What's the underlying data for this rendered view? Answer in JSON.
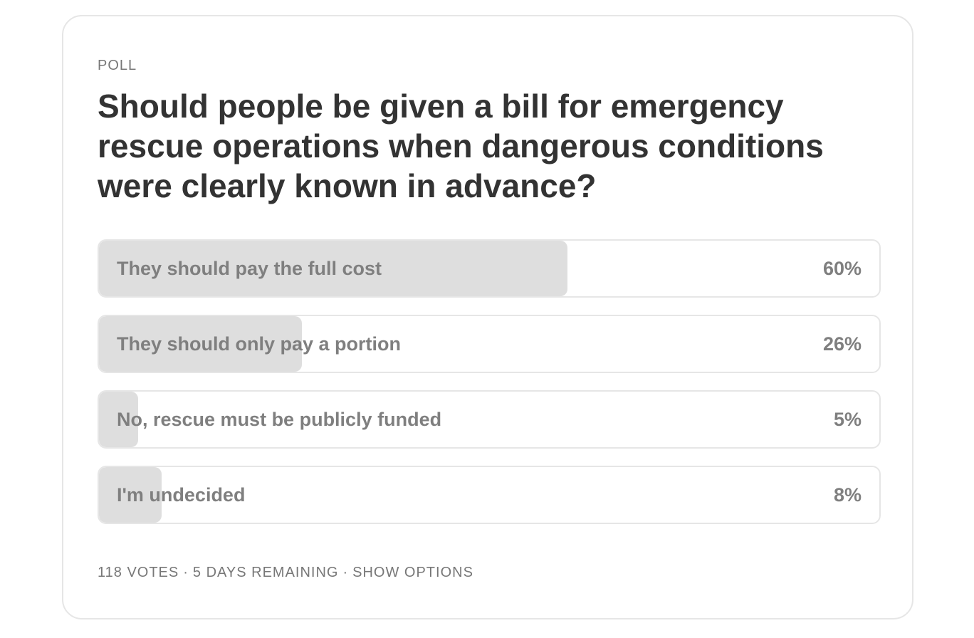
{
  "poll": {
    "label": "POLL",
    "question": "Should people be given a bill for emergency rescue operations when dangerous conditions were clearly known in advance?",
    "options": [
      {
        "label": "They should pay the full cost",
        "percent_text": "60%",
        "percent": 60
      },
      {
        "label": "They should only pay a portion",
        "percent_text": "26%",
        "percent": 26
      },
      {
        "label": "No, rescue must be publicly funded",
        "percent_text": "5%",
        "percent": 5
      },
      {
        "label": "I'm undecided",
        "percent_text": "8%",
        "percent": 8
      }
    ],
    "footer": {
      "votes": "118 VOTES",
      "separator": "·",
      "remaining": "5 DAYS REMAINING",
      "show_options": "SHOW OPTIONS"
    }
  },
  "colors": {
    "fill": "#dedede",
    "border": "#e6e6e6",
    "title_text": "#333333",
    "muted_text": "#777777"
  }
}
